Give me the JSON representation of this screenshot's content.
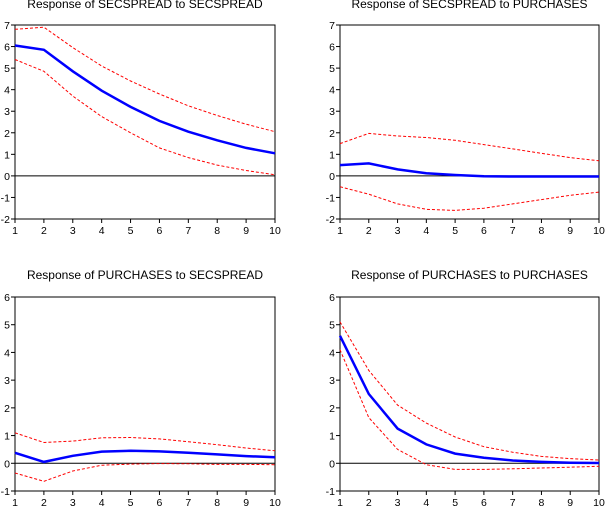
{
  "chart_data": [
    {
      "type": "line",
      "title": "Response of SECSPREAD to SECSPREAD",
      "x": [
        1,
        2,
        3,
        4,
        5,
        6,
        7,
        8,
        9,
        10
      ],
      "ylim": [
        -2,
        7
      ],
      "yticks": [
        -2,
        -1,
        0,
        1,
        2,
        3,
        4,
        5,
        6,
        7
      ],
      "series": [
        {
          "role": "response",
          "values": [
            6.05,
            5.85,
            4.85,
            3.95,
            3.2,
            2.55,
            2.05,
            1.65,
            1.3,
            1.05
          ]
        },
        {
          "role": "upper",
          "values": [
            6.8,
            6.9,
            5.95,
            5.1,
            4.4,
            3.8,
            3.25,
            2.8,
            2.4,
            2.05
          ]
        },
        {
          "role": "lower",
          "values": [
            5.4,
            4.85,
            3.7,
            2.75,
            2.0,
            1.3,
            0.85,
            0.5,
            0.25,
            0.05
          ]
        }
      ]
    },
    {
      "type": "line",
      "title": "Response of SECSPREAD to PURCHASES",
      "x": [
        1,
        2,
        3,
        4,
        5,
        6,
        7,
        8,
        9,
        10
      ],
      "ylim": [
        -2,
        7
      ],
      "yticks": [
        -2,
        -1,
        0,
        1,
        2,
        3,
        4,
        5,
        6,
        7
      ],
      "series": [
        {
          "role": "response",
          "values": [
            0.5,
            0.58,
            0.3,
            0.12,
            0.04,
            -0.02,
            -0.03,
            -0.03,
            -0.03,
            -0.03
          ]
        },
        {
          "role": "upper",
          "values": [
            1.5,
            1.97,
            1.85,
            1.78,
            1.65,
            1.45,
            1.25,
            1.05,
            0.85,
            0.7
          ]
        },
        {
          "role": "lower",
          "values": [
            -0.5,
            -0.85,
            -1.3,
            -1.55,
            -1.6,
            -1.5,
            -1.3,
            -1.1,
            -0.9,
            -0.75
          ]
        }
      ]
    },
    {
      "type": "line",
      "title": "Response of PURCHASES to SECSPREAD",
      "x": [
        1,
        2,
        3,
        4,
        5,
        6,
        7,
        8,
        9,
        10
      ],
      "ylim": [
        -1,
        6
      ],
      "yticks": [
        -1,
        0,
        1,
        2,
        3,
        4,
        5,
        6
      ],
      "series": [
        {
          "role": "response",
          "values": [
            0.38,
            0.05,
            0.27,
            0.42,
            0.45,
            0.43,
            0.38,
            0.32,
            0.26,
            0.22
          ]
        },
        {
          "role": "upper",
          "values": [
            1.1,
            0.75,
            0.8,
            0.92,
            0.93,
            0.88,
            0.78,
            0.67,
            0.55,
            0.45
          ]
        },
        {
          "role": "lower",
          "values": [
            -0.35,
            -0.65,
            -0.28,
            -0.07,
            -0.03,
            -0.01,
            -0.02,
            -0.04,
            -0.04,
            -0.05
          ]
        }
      ]
    },
    {
      "type": "line",
      "title": "Response of PURCHASES to PURCHASES",
      "x": [
        1,
        2,
        3,
        4,
        5,
        6,
        7,
        8,
        9,
        10
      ],
      "ylim": [
        -1,
        6
      ],
      "yticks": [
        -1,
        0,
        1,
        2,
        3,
        4,
        5,
        6
      ],
      "series": [
        {
          "role": "response",
          "values": [
            4.6,
            2.5,
            1.25,
            0.68,
            0.35,
            0.2,
            0.1,
            0.05,
            0.02,
            0.01
          ]
        },
        {
          "role": "upper",
          "values": [
            5.1,
            3.35,
            2.1,
            1.45,
            0.95,
            0.6,
            0.4,
            0.25,
            0.17,
            0.12
          ]
        },
        {
          "role": "lower",
          "values": [
            4.1,
            1.65,
            0.5,
            -0.05,
            -0.22,
            -0.22,
            -0.2,
            -0.17,
            -0.14,
            -0.11
          ]
        }
      ]
    }
  ],
  "colors": {
    "response": "#0000ff",
    "bands": "#ff0000",
    "zero_line": "#000000"
  },
  "grid": false
}
